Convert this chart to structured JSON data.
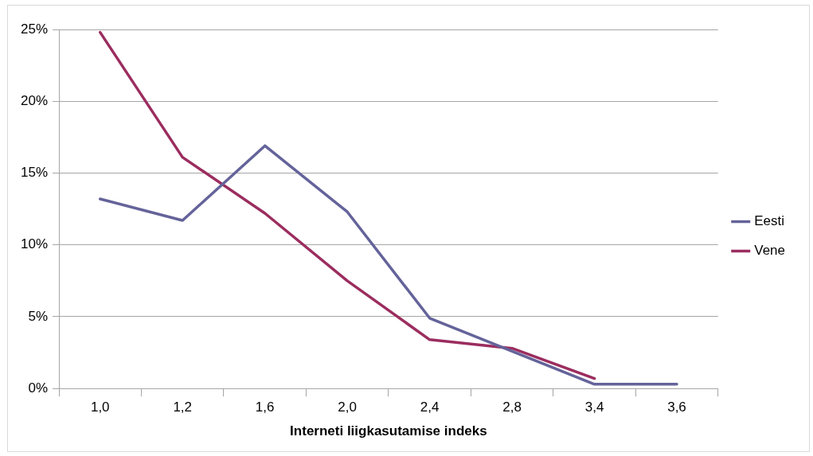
{
  "chart_data": {
    "type": "line",
    "xlabel": "Interneti liigkasutamise indeks",
    "categories": [
      "1,0",
      "1,2",
      "1,6",
      "2,0",
      "2,4",
      "2,8",
      "3,4",
      "3,6"
    ],
    "series": [
      {
        "name": "Eesti",
        "color": "#64639a",
        "values": [
          13.2,
          11.7,
          16.9,
          12.3,
          4.9,
          2.6,
          0.3,
          0.3
        ]
      },
      {
        "name": "Vene",
        "color": "#9b2d5f",
        "values": [
          24.8,
          16.1,
          12.2,
          7.5,
          3.4,
          2.8,
          0.7,
          null
        ]
      }
    ],
    "ylim": [
      0,
      25
    ],
    "yticks": [
      {
        "value": 0,
        "label": "0%"
      },
      {
        "value": 5,
        "label": "5%"
      },
      {
        "value": 10,
        "label": "10%"
      },
      {
        "value": 15,
        "label": "15%"
      },
      {
        "value": 20,
        "label": "20%"
      },
      {
        "value": 25,
        "label": "25%"
      }
    ],
    "grid": "y",
    "legend": "right",
    "marker": "none",
    "line_style": "solid"
  }
}
